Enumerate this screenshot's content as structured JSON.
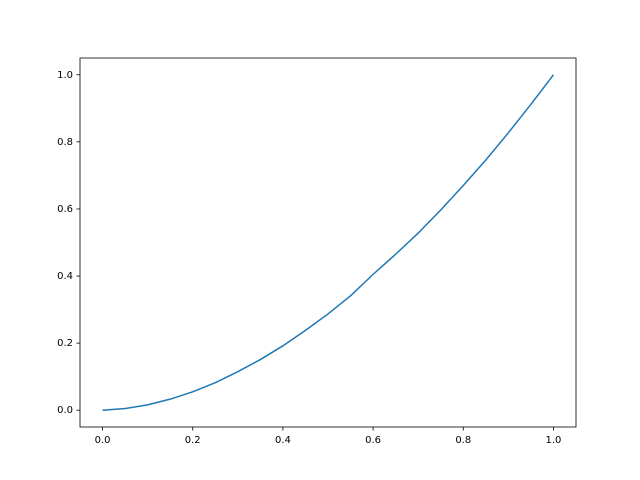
{
  "chart_data": {
    "type": "line",
    "x": [
      0,
      0.05,
      0.1,
      0.15,
      0.2,
      0.25,
      0.3,
      0.35,
      0.4,
      0.45,
      0.5,
      0.55,
      0.6,
      0.65,
      0.7,
      0.75,
      0.8,
      0.85,
      0.9,
      0.95,
      1
    ],
    "series": [
      {
        "color": "#1f77b4",
        "values": [
          0,
          0.005,
          0.016,
          0.033,
          0.055,
          0.082,
          0.115,
          0.151,
          0.192,
          0.238,
          0.287,
          0.341,
          0.405,
          0.465,
          0.528,
          0.597,
          0.67,
          0.746,
          0.827,
          0.912,
          1
        ]
      }
    ],
    "xlim": [
      -0.05,
      1.05
    ],
    "ylim": [
      -0.05,
      1.05
    ],
    "xticks": [
      {
        "value": 0,
        "label": "0.0"
      },
      0.2,
      0.4,
      0.6,
      0.8,
      {
        "value": 1,
        "label": "1.0"
      }
    ],
    "yticks": [
      {
        "value": 0,
        "label": "0.0"
      },
      0.2,
      0.4,
      0.6,
      0.8,
      {
        "value": 1,
        "label": "1.0"
      }
    ]
  }
}
